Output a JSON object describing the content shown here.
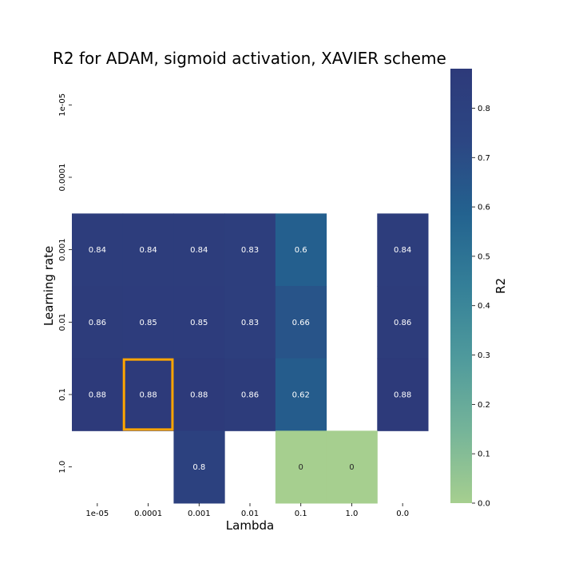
{
  "chart_data": {
    "type": "heatmap",
    "title": "R2 for ADAM, sigmoid activation, XAVIER scheme",
    "xlabel": "Lambda",
    "ylabel": "Learning rate",
    "x_categories": [
      "1e-05",
      "0.0001",
      "0.001",
      "0.01",
      "0.1",
      "1.0",
      "0.0"
    ],
    "y_categories": [
      "1e-05",
      "0.0001",
      "0.001",
      "0.01",
      "0.1",
      "1.0"
    ],
    "values": [
      [
        null,
        null,
        null,
        null,
        null,
        null,
        null
      ],
      [
        null,
        null,
        null,
        null,
        null,
        null,
        null
      ],
      [
        0.84,
        0.84,
        0.84,
        0.83,
        0.6,
        null,
        0.84
      ],
      [
        0.86,
        0.85,
        0.85,
        0.83,
        0.66,
        null,
        0.86
      ],
      [
        0.88,
        0.88,
        0.88,
        0.86,
        0.62,
        null,
        0.88
      ],
      [
        null,
        null,
        0.8,
        null,
        0,
        0,
        null
      ]
    ],
    "highlight": {
      "row": 4,
      "col": 1,
      "color": "#FFA500"
    },
    "colorbar": {
      "label": "R2",
      "min": 0.0,
      "max": 0.88,
      "ticks": [
        "0.0",
        "0.1",
        "0.2",
        "0.3",
        "0.4",
        "0.5",
        "0.6",
        "0.7",
        "0.8"
      ],
      "colormap": [
        "#a6cf8f",
        "#75b499",
        "#4f9a9c",
        "#347f98",
        "#23628f",
        "#2c4683",
        "#2d3a7a"
      ]
    },
    "grid": false
  }
}
